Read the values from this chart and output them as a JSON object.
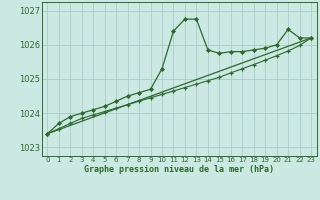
{
  "title": "Graphe pression niveau de la mer (hPa)",
  "bg_color": "#cce8e2",
  "grid_color": "#aaccca",
  "line_color": "#2d6a2d",
  "xlim": [
    -0.5,
    23.5
  ],
  "ylim": [
    1022.75,
    1027.25
  ],
  "yticks": [
    1023,
    1024,
    1025,
    1026,
    1027
  ],
  "xticks": [
    0,
    1,
    2,
    3,
    4,
    5,
    6,
    7,
    8,
    9,
    10,
    11,
    12,
    13,
    14,
    15,
    16,
    17,
    18,
    19,
    20,
    21,
    22,
    23
  ],
  "series1_x": [
    0,
    1,
    2,
    3,
    4,
    5,
    6,
    7,
    8,
    9,
    10,
    11,
    12,
    13,
    14,
    15,
    16,
    17,
    18,
    19,
    20,
    21,
    22,
    23
  ],
  "series1_y": [
    1023.4,
    1023.7,
    1023.9,
    1024.0,
    1024.1,
    1024.2,
    1024.35,
    1024.5,
    1024.6,
    1024.7,
    1025.3,
    1026.4,
    1026.75,
    1026.75,
    1025.85,
    1025.75,
    1025.8,
    1025.8,
    1025.85,
    1025.9,
    1026.0,
    1026.45,
    1026.2,
    1026.2
  ],
  "series2_x": [
    0,
    1,
    2,
    3,
    4,
    5,
    6,
    7,
    8,
    9,
    10,
    11,
    12,
    13,
    14,
    15,
    16,
    17,
    18,
    19,
    20,
    21,
    22,
    23
  ],
  "series2_y": [
    1023.4,
    1023.55,
    1023.7,
    1023.85,
    1023.95,
    1024.05,
    1024.15,
    1024.25,
    1024.35,
    1024.45,
    1024.55,
    1024.65,
    1024.75,
    1024.85,
    1024.95,
    1025.05,
    1025.18,
    1025.3,
    1025.42,
    1025.55,
    1025.68,
    1025.82,
    1025.98,
    1026.2
  ],
  "series3_x": [
    0,
    23
  ],
  "series3_y": [
    1023.4,
    1026.2
  ]
}
